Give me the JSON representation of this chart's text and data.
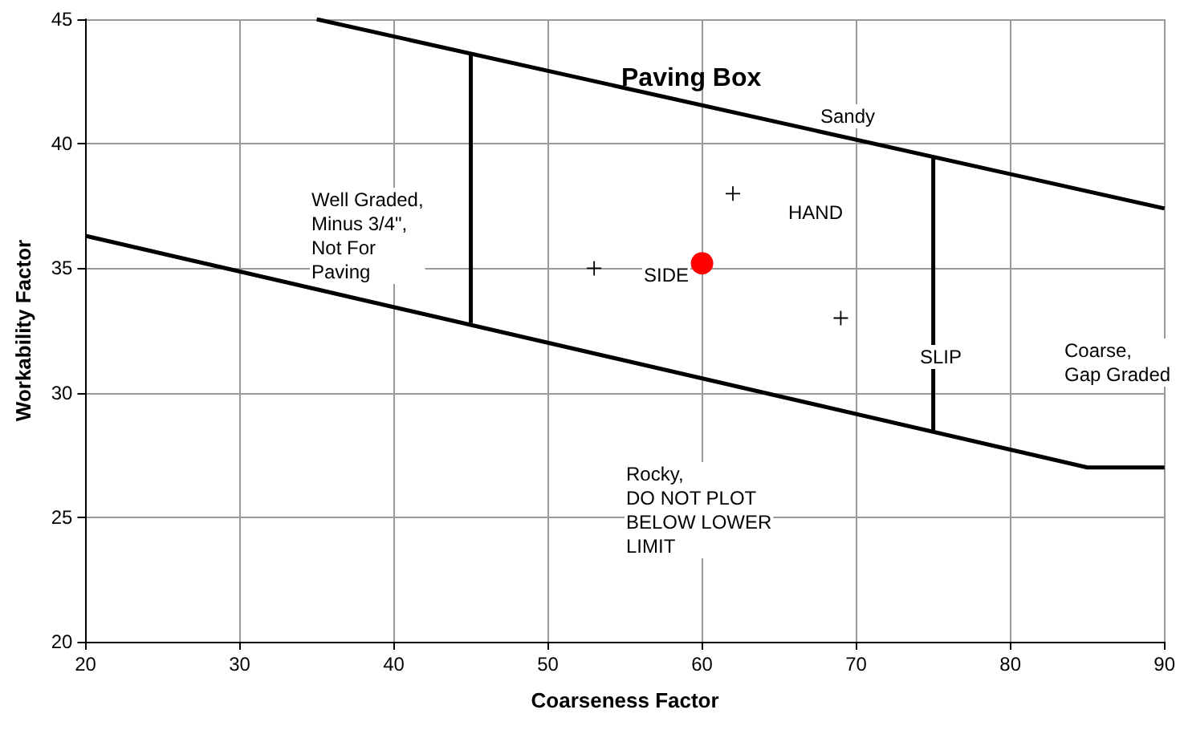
{
  "chart_data": {
    "type": "line",
    "title": "Paving Box",
    "xlabel": "Coarseness Factor",
    "ylabel": "Workability Factor",
    "xlim": [
      20,
      90
    ],
    "xticks": [
      20,
      30,
      40,
      50,
      60,
      70,
      80,
      90
    ],
    "ylim": [
      20,
      45
    ],
    "yticks": [
      20,
      25,
      30,
      35,
      40,
      45
    ],
    "grid": true,
    "series": [
      {
        "color": "#000000",
        "marker": "none",
        "x": [
          35,
          90
        ],
        "values": [
          45,
          37.4
        ]
      },
      {
        "color": "#000000",
        "marker": "none",
        "x": [
          20,
          85,
          90
        ],
        "values": [
          36.3,
          27,
          27
        ]
      },
      {
        "color": "#000000",
        "marker": "none",
        "x": [
          45,
          45
        ],
        "values": [
          43.6,
          32.8
        ]
      },
      {
        "color": "#000000",
        "marker": "none",
        "x": [
          75,
          75
        ],
        "values": [
          39.5,
          28.5
        ]
      },
      {
        "type": "scatter",
        "color": "#000000",
        "marker": "cross",
        "x": [
          53,
          62,
          69
        ],
        "values": [
          35,
          38,
          33
        ]
      },
      {
        "type": "scatter",
        "color": "#ff0000",
        "marker": "circle",
        "x": [
          60
        ],
        "values": [
          35.2
        ]
      }
    ],
    "annotations": [
      "Sandy",
      "Well Graded,\nMinus 3/4\",\nNot For\nPaving",
      "HAND",
      "SIDE",
      "SLIP",
      "Coarse,\nGap Graded",
      "Rocky,\nDO NOT PLOT\nBELOW LOWER\nLIMIT"
    ]
  }
}
